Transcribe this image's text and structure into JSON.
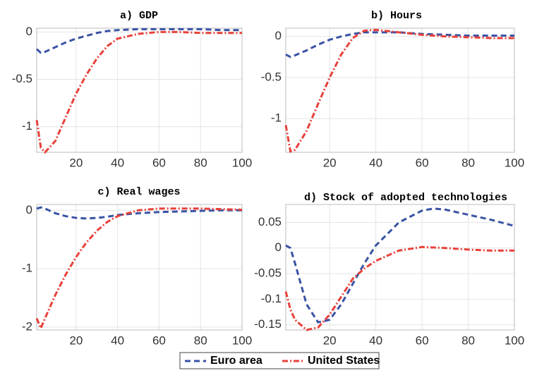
{
  "chart_data": [
    {
      "type": "line",
      "title": "a) GDP",
      "xlim": [
        1,
        100
      ],
      "ylim": [
        -1.27,
        0.04
      ],
      "xticks": [
        20,
        40,
        60,
        80,
        100
      ],
      "yticks": [
        0,
        -0.5,
        -1
      ],
      "grid": true,
      "x": [
        1,
        3,
        5,
        10,
        15,
        20,
        25,
        30,
        35,
        40,
        50,
        60,
        70,
        80,
        90,
        100
      ],
      "series": [
        {
          "name": "Euro area",
          "color": "#3953a4",
          "values": [
            -0.18,
            -0.22,
            -0.21,
            -0.16,
            -0.11,
            -0.07,
            -0.04,
            -0.01,
            0.01,
            0.02,
            0.03,
            0.03,
            0.03,
            0.03,
            0.02,
            0.02
          ]
        },
        {
          "name": "United States",
          "color": "#e8413a",
          "values": [
            -0.93,
            -1.22,
            -1.27,
            -1.15,
            -0.9,
            -0.65,
            -0.45,
            -0.28,
            -0.15,
            -0.07,
            -0.02,
            0,
            0,
            -0.01,
            -0.01,
            -0.01
          ]
        }
      ]
    },
    {
      "type": "line",
      "title": "b) Hours",
      "xlim": [
        1,
        100
      ],
      "ylim": [
        -1.41,
        0.1
      ],
      "xticks": [
        20,
        40,
        60,
        80,
        100
      ],
      "yticks": [
        0,
        -0.5,
        -1
      ],
      "grid": true,
      "x": [
        1,
        3,
        5,
        10,
        15,
        20,
        25,
        30,
        35,
        40,
        50,
        60,
        70,
        80,
        90,
        100
      ],
      "series": [
        {
          "name": "Euro area",
          "color": "#3953a4",
          "values": [
            -0.22,
            -0.25,
            -0.23,
            -0.17,
            -0.1,
            -0.04,
            0,
            0.03,
            0.05,
            0.05,
            0.05,
            0.03,
            0.02,
            0.01,
            0.01,
            0.01
          ]
        },
        {
          "name": "United States",
          "color": "#e8413a",
          "values": [
            -1.08,
            -1.4,
            -1.38,
            -1.15,
            -0.82,
            -0.5,
            -0.22,
            -0.02,
            0.07,
            0.08,
            0.05,
            0.02,
            0,
            -0.01,
            -0.02,
            -0.02
          ]
        }
      ]
    },
    {
      "type": "line",
      "title": "c) Real wages",
      "xlim": [
        1,
        100
      ],
      "ylim": [
        -2.05,
        0.1
      ],
      "xticks": [
        20,
        40,
        60,
        80,
        100
      ],
      "yticks": [
        0,
        -1,
        -2
      ],
      "grid": true,
      "x": [
        1,
        3,
        5,
        10,
        15,
        20,
        25,
        30,
        35,
        40,
        50,
        60,
        70,
        80,
        90,
        100
      ],
      "series": [
        {
          "name": "Euro area",
          "color": "#3953a4",
          "values": [
            0.03,
            0.05,
            0.03,
            -0.05,
            -0.1,
            -0.13,
            -0.14,
            -0.13,
            -0.11,
            -0.08,
            -0.05,
            -0.03,
            -0.02,
            -0.01,
            0,
            0
          ]
        },
        {
          "name": "United States",
          "color": "#e8413a",
          "values": [
            -1.85,
            -2.02,
            -1.85,
            -1.45,
            -1.1,
            -0.8,
            -0.55,
            -0.35,
            -0.2,
            -0.1,
            0,
            0.03,
            0.03,
            0.03,
            0.02,
            0.01
          ]
        }
      ]
    },
    {
      "type": "line",
      "title": "d) Stock of adopted technologies",
      "xlim": [
        1,
        100
      ],
      "ylim": [
        -0.16,
        0.085
      ],
      "xticks": [
        20,
        40,
        60,
        80,
        100
      ],
      "yticks": [
        0.05,
        0,
        -0.05,
        -0.1,
        -0.15
      ],
      "grid": true,
      "x": [
        1,
        3,
        5,
        10,
        15,
        20,
        25,
        30,
        35,
        40,
        50,
        60,
        65,
        70,
        80,
        90,
        100
      ],
      "series": [
        {
          "name": "Euro area",
          "color": "#3953a4",
          "values": [
            0.005,
            0,
            -0.03,
            -0.11,
            -0.145,
            -0.14,
            -0.11,
            -0.07,
            -0.03,
            0.005,
            0.05,
            0.073,
            0.077,
            0.075,
            0.065,
            0.055,
            0.043
          ]
        },
        {
          "name": "United States",
          "color": "#e8413a",
          "values": [
            -0.085,
            -0.12,
            -0.14,
            -0.16,
            -0.155,
            -0.13,
            -0.095,
            -0.06,
            -0.04,
            -0.025,
            -0.005,
            0.002,
            0.001,
            0,
            -0.003,
            -0.005,
            -0.005
          ]
        }
      ]
    }
  ]
}
